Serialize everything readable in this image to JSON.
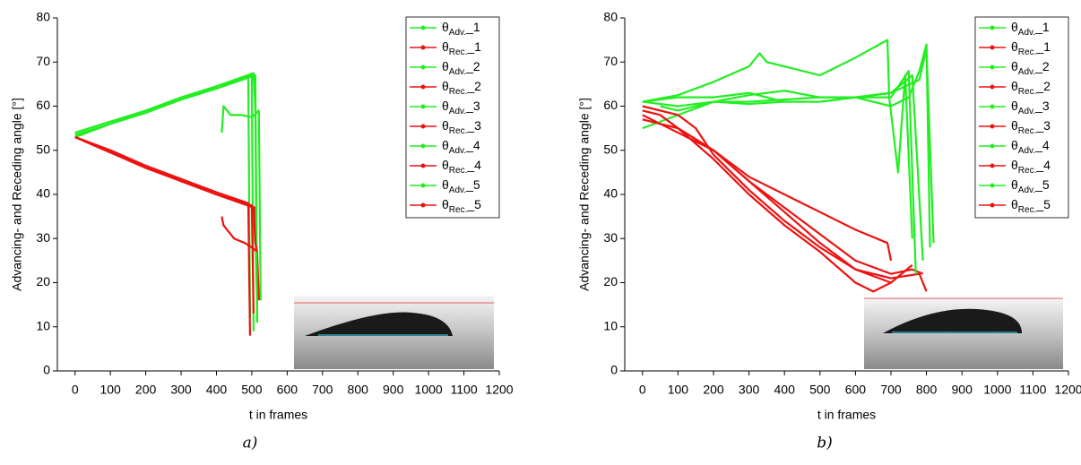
{
  "chart_data": [
    {
      "type": "line",
      "caption": "a)",
      "xlabel": "t in frames",
      "ylabel": "Advancing- and Receding angle [°]",
      "xlim": [
        -50,
        1200
      ],
      "ylim": [
        0,
        80
      ],
      "xticks": [
        0,
        100,
        200,
        300,
        400,
        500,
        600,
        700,
        800,
        900,
        1000,
        1100,
        1200
      ],
      "yticks": [
        0,
        10,
        20,
        30,
        40,
        50,
        60,
        70,
        80
      ],
      "legend": "upper right",
      "series": [
        {
          "name": "θAdv._1",
          "color": "#22ee22",
          "x": [
            0,
            100,
            200,
            300,
            400,
            490,
            495
          ],
          "values": [
            53,
            56,
            59,
            61.5,
            64,
            66.5,
            12
          ]
        },
        {
          "name": "θRec._1",
          "color": "#ee1111",
          "x": [
            0,
            100,
            200,
            300,
            400,
            490,
            495
          ],
          "values": [
            53,
            50,
            46.5,
            43.5,
            40.5,
            38,
            8
          ]
        },
        {
          "name": "θAdv._2",
          "color": "#22ee22",
          "x": [
            0,
            100,
            200,
            300,
            400,
            500,
            505
          ],
          "values": [
            54,
            56.5,
            59,
            62,
            64.5,
            67,
            9
          ]
        },
        {
          "name": "θRec._2",
          "color": "#ee1111",
          "x": [
            0,
            100,
            200,
            300,
            400,
            500,
            505
          ],
          "values": [
            53,
            49.5,
            46.5,
            43,
            40,
            37.5,
            13
          ]
        },
        {
          "name": "θAdv._3",
          "color": "#22ee22",
          "x": [
            0,
            100,
            200,
            300,
            400,
            510,
            515
          ],
          "values": [
            53.5,
            56,
            58.5,
            61.5,
            64,
            67,
            11
          ]
        },
        {
          "name": "θRec._3",
          "color": "#ee1111",
          "x": [
            0,
            100,
            200,
            300,
            400,
            510,
            515
          ],
          "values": [
            53,
            49.5,
            46,
            43,
            40,
            37,
            15
          ]
        },
        {
          "name": "θAdv._4",
          "color": "#22ee22",
          "x": [
            415,
            420,
            440,
            470,
            500,
            520,
            525
          ],
          "values": [
            54,
            60,
            58,
            58,
            57.5,
            59,
            16
          ]
        },
        {
          "name": "θRec._4",
          "color": "#ee1111",
          "x": [
            415,
            420,
            450,
            480,
            500,
            515,
            520
          ],
          "values": [
            35,
            33,
            30,
            29,
            28,
            27,
            16
          ]
        },
        {
          "name": "θAdv._5",
          "color": "#22ee22",
          "x": [
            0,
            100,
            200,
            300,
            400,
            505,
            510,
            515
          ],
          "values": [
            53,
            56,
            58.5,
            61.5,
            64.5,
            67.5,
            59,
            11
          ]
        },
        {
          "name": "θRec._5",
          "color": "#ee1111",
          "x": [
            0,
            100,
            200,
            300,
            400,
            505,
            510,
            515
          ],
          "values": [
            53,
            50,
            46.5,
            43.5,
            40,
            37,
            29,
            27
          ]
        }
      ]
    },
    {
      "type": "line",
      "caption": "b)",
      "xlabel": "t in frames",
      "ylabel": "Advancing- and Receding angle [°]",
      "xlim": [
        -50,
        1200
      ],
      "ylim": [
        0,
        80
      ],
      "xticks": [
        0,
        100,
        200,
        300,
        400,
        500,
        600,
        700,
        800,
        900,
        1000,
        1100,
        1200
      ],
      "yticks": [
        0,
        10,
        20,
        30,
        40,
        50,
        60,
        70,
        80
      ],
      "legend": "upper right",
      "series": [
        {
          "name": "θAdv._1",
          "color": "#22ee22",
          "x": [
            0,
            100,
            200,
            300,
            330,
            350,
            400,
            500,
            600,
            690,
            695,
            720,
            740,
            760
          ],
          "values": [
            61,
            62.5,
            65.5,
            69,
            72,
            70,
            69,
            67,
            71,
            75,
            62,
            45,
            67,
            30
          ]
        },
        {
          "name": "θRec._1",
          "color": "#ee1111",
          "x": [
            0,
            100,
            200,
            300,
            400,
            500,
            600,
            690,
            700
          ],
          "values": [
            58,
            54,
            50,
            44,
            40,
            36,
            32,
            29,
            25
          ]
        },
        {
          "name": "θAdv._2",
          "color": "#22ee22",
          "x": [
            0,
            100,
            200,
            300,
            400,
            500,
            600,
            700,
            750,
            780,
            800,
            810
          ],
          "values": [
            61,
            62,
            62,
            63,
            61,
            61,
            62,
            60,
            62,
            68,
            74,
            28
          ]
        },
        {
          "name": "θRec._2",
          "color": "#ee1111",
          "x": [
            0,
            50,
            100,
            200,
            300,
            400,
            500,
            600,
            650,
            700
          ],
          "values": [
            59,
            58,
            55,
            48,
            40,
            33,
            27,
            20,
            18,
            20
          ]
        },
        {
          "name": "θAdv._3",
          "color": "#22ee22",
          "x": [
            0,
            100,
            200,
            300,
            400,
            500,
            600,
            700,
            760,
            790
          ],
          "values": [
            55,
            58,
            61,
            62.5,
            63.5,
            62,
            62,
            63,
            67,
            25
          ]
        },
        {
          "name": "θRec._3",
          "color": "#ee1111",
          "x": [
            0,
            100,
            200,
            300,
            400,
            500,
            600,
            700,
            760,
            790
          ],
          "values": [
            57,
            55,
            50,
            43,
            37,
            31,
            25,
            22,
            23,
            22
          ]
        },
        {
          "name": "θAdv._4",
          "color": "#22ee22",
          "x": [
            50,
            100,
            200,
            300,
            400,
            500,
            600,
            700,
            780,
            800,
            820
          ],
          "values": [
            60,
            59,
            61,
            61,
            61.5,
            62,
            62,
            63,
            66,
            73,
            29
          ]
        },
        {
          "name": "θRec._4",
          "color": "#ee1111",
          "x": [
            50,
            100,
            200,
            300,
            400,
            500,
            600,
            700,
            780,
            800
          ],
          "values": [
            58,
            55,
            50,
            43,
            36,
            29,
            23,
            21,
            22,
            18
          ]
        },
        {
          "name": "θAdv._5",
          "color": "#22ee22",
          "x": [
            0,
            100,
            200,
            300,
            400,
            500,
            600,
            700,
            750,
            770
          ],
          "values": [
            61,
            60,
            61,
            60.5,
            61,
            61,
            62,
            62,
            68,
            22
          ]
        },
        {
          "name": "θRec._5",
          "color": "#ee1111",
          "x": [
            0,
            100,
            150,
            200,
            300,
            400,
            500,
            600,
            700,
            760
          ],
          "values": [
            60,
            58,
            55,
            49,
            41,
            34,
            28,
            23,
            20,
            24
          ]
        }
      ]
    }
  ]
}
